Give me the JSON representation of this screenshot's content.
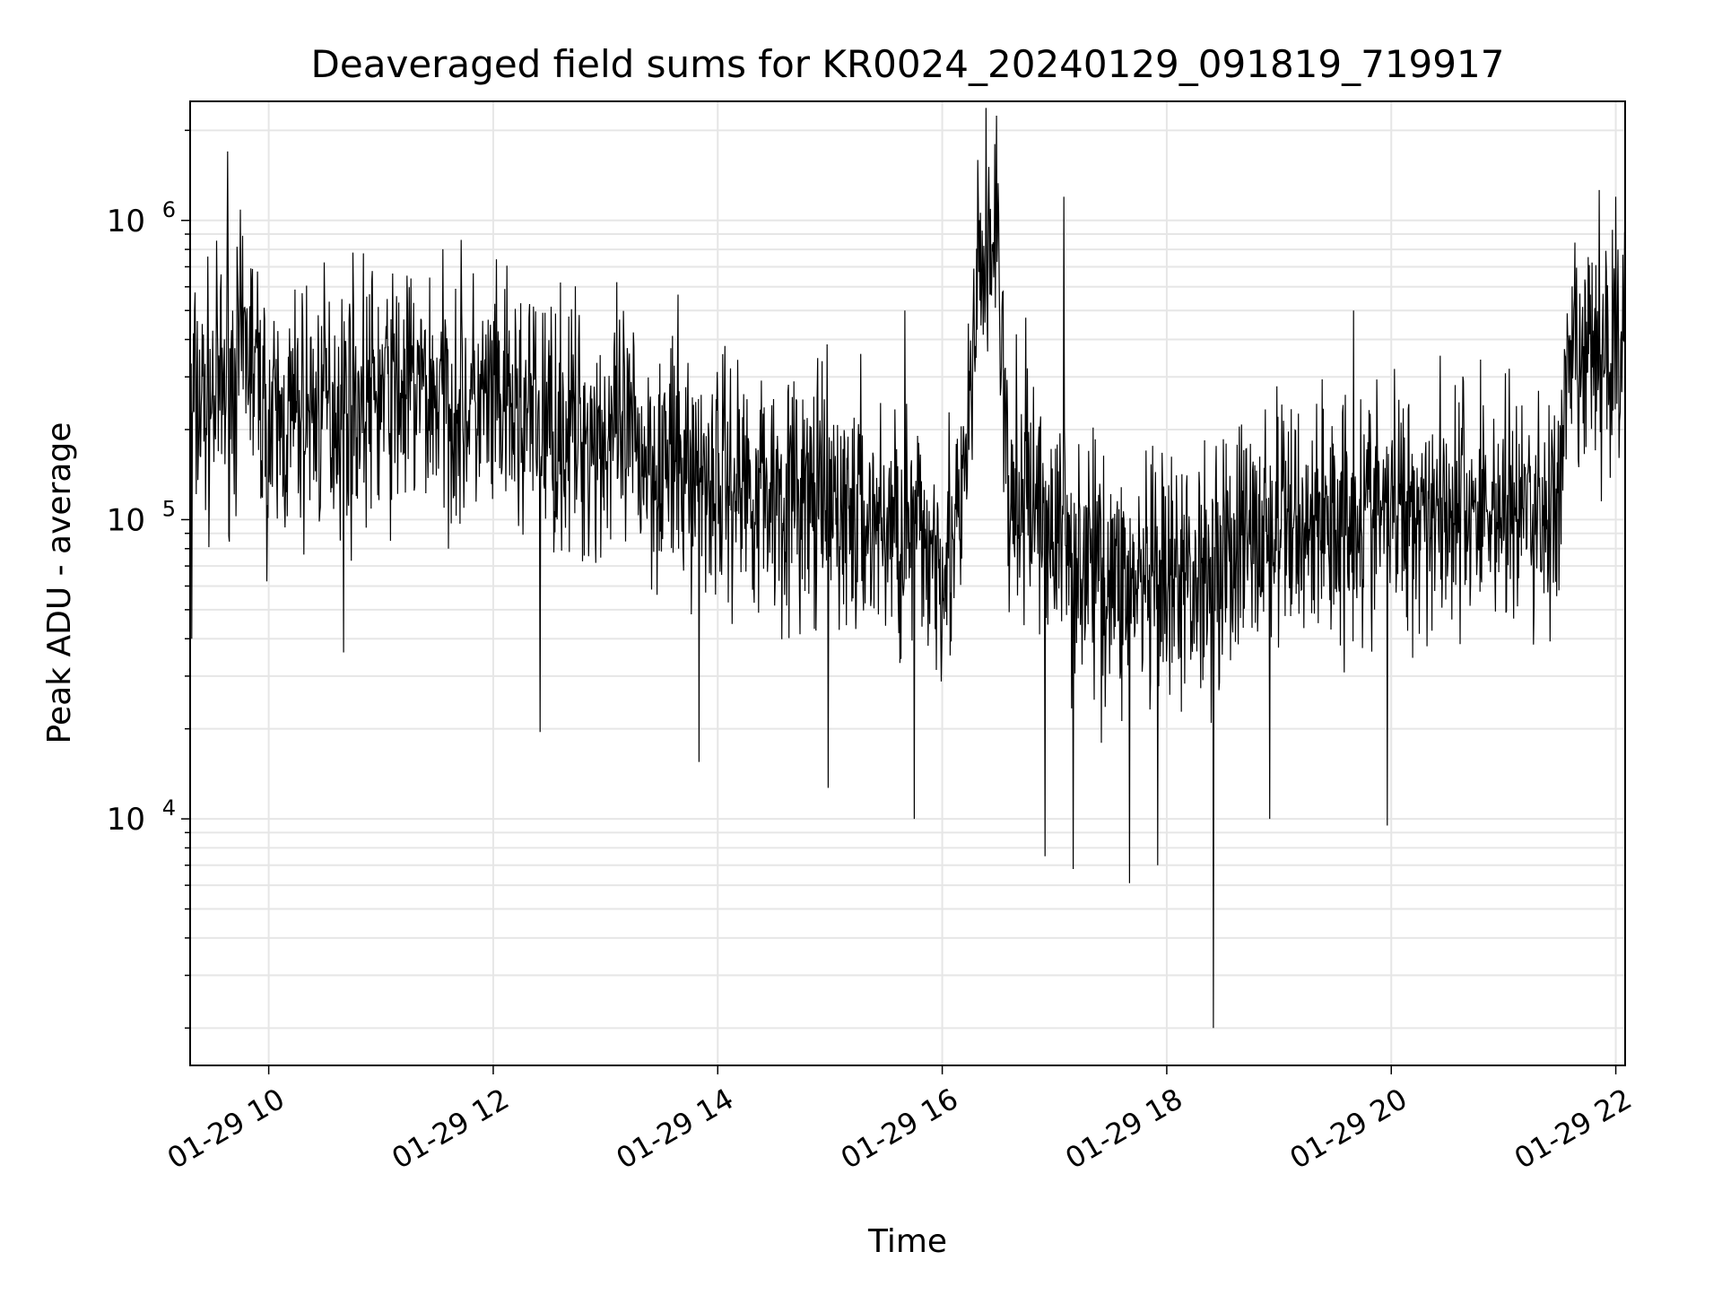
{
  "chart_data": {
    "type": "line",
    "title": "Deaveraged field sums for KR0024_20240129_091819_719917",
    "xlabel": "Time",
    "ylabel": "Peak ADU - average",
    "yscale": "log",
    "ylim": [
      1500,
      2500000
    ],
    "xlim": [
      "2024-01-29T09:18",
      "2024-01-29T22:05"
    ],
    "grid": true,
    "line_color": "#000000",
    "x_ticks": [
      {
        "value": "2024-01-29T10:00",
        "label": "01-29 10"
      },
      {
        "value": "2024-01-29T12:00",
        "label": "01-29 12"
      },
      {
        "value": "2024-01-29T14:00",
        "label": "01-29 14"
      },
      {
        "value": "2024-01-29T16:00",
        "label": "01-29 16"
      },
      {
        "value": "2024-01-29T18:00",
        "label": "01-29 18"
      },
      {
        "value": "2024-01-29T20:00",
        "label": "01-29 20"
      },
      {
        "value": "2024-01-29T22:00",
        "label": "01-29 22"
      }
    ],
    "y_ticks": [
      {
        "value": 10000,
        "base": "10",
        "exp": "4"
      },
      {
        "value": 100000,
        "base": "10",
        "exp": "5"
      },
      {
        "value": 1000000,
        "base": "10",
        "exp": "6"
      }
    ],
    "series": [
      {
        "x": [
          "2024-01-29T09:18",
          "2024-01-29T09:30",
          "2024-01-29T09:40",
          "2024-01-29T09:50",
          "2024-01-29T10:00",
          "2024-01-29T10:20",
          "2024-01-29T10:40",
          "2024-01-29T11:00",
          "2024-01-29T11:20",
          "2024-01-29T11:40",
          "2024-01-29T12:00",
          "2024-01-29T12:20",
          "2024-01-29T12:40",
          "2024-01-29T13:00",
          "2024-01-29T13:20",
          "2024-01-29T13:40",
          "2024-01-29T14:00",
          "2024-01-29T14:20",
          "2024-01-29T14:40",
          "2024-01-29T15:00",
          "2024-01-29T15:20",
          "2024-01-29T15:40",
          "2024-01-29T16:00",
          "2024-01-29T16:10",
          "2024-01-29T16:20",
          "2024-01-29T16:30",
          "2024-01-29T16:35",
          "2024-01-29T16:45",
          "2024-01-29T17:00",
          "2024-01-29T17:20",
          "2024-01-29T17:40",
          "2024-01-29T18:00",
          "2024-01-29T18:20",
          "2024-01-29T18:40",
          "2024-01-29T19:00",
          "2024-01-29T19:20",
          "2024-01-29T19:40",
          "2024-01-29T20:00",
          "2024-01-29T20:20",
          "2024-01-29T20:40",
          "2024-01-29T21:00",
          "2024-01-29T21:20",
          "2024-01-29T21:30",
          "2024-01-29T21:35",
          "2024-01-29T21:45",
          "2024-01-29T22:05"
        ],
        "y": [
          240000,
          250000,
          300000,
          380000,
          190000,
          230000,
          250000,
          260000,
          270000,
          250000,
          230000,
          220000,
          200000,
          190000,
          170000,
          150000,
          140000,
          130000,
          120000,
          110000,
          100000,
          90000,
          80000,
          90000,
          700000,
          900000,
          100000,
          130000,
          90000,
          70000,
          60000,
          55000,
          70000,
          85000,
          95000,
          100000,
          105000,
          110000,
          115000,
          110000,
          110000,
          105000,
          110000,
          300000,
          350000,
          400000
        ],
        "spikes": [
          {
            "x": "2024-01-29T09:38",
            "y": 1700000
          },
          {
            "x": "2024-01-29T09:19",
            "y": 40000
          },
          {
            "x": "2024-01-29T10:40",
            "y": 36000
          },
          {
            "x": "2024-01-29T12:25",
            "y": 19500
          },
          {
            "x": "2024-01-29T13:50",
            "y": 15500
          },
          {
            "x": "2024-01-29T14:59",
            "y": 12700
          },
          {
            "x": "2024-01-29T15:45",
            "y": 10000
          },
          {
            "x": "2024-01-29T15:40",
            "y": 500000
          },
          {
            "x": "2024-01-29T16:28",
            "y": 1800000
          },
          {
            "x": "2024-01-29T16:55",
            "y": 7500
          },
          {
            "x": "2024-01-29T17:05",
            "y": 1200000
          },
          {
            "x": "2024-01-29T17:10",
            "y": 6800
          },
          {
            "x": "2024-01-29T17:40",
            "y": 6100
          },
          {
            "x": "2024-01-29T17:55",
            "y": 7000
          },
          {
            "x": "2024-01-29T18:25",
            "y": 2000
          },
          {
            "x": "2024-01-29T18:55",
            "y": 10000
          },
          {
            "x": "2024-01-29T19:40",
            "y": 500000
          },
          {
            "x": "2024-01-29T19:58",
            "y": 9500
          },
          {
            "x": "2024-01-29T22:00",
            "y": 1200000
          }
        ]
      }
    ]
  }
}
